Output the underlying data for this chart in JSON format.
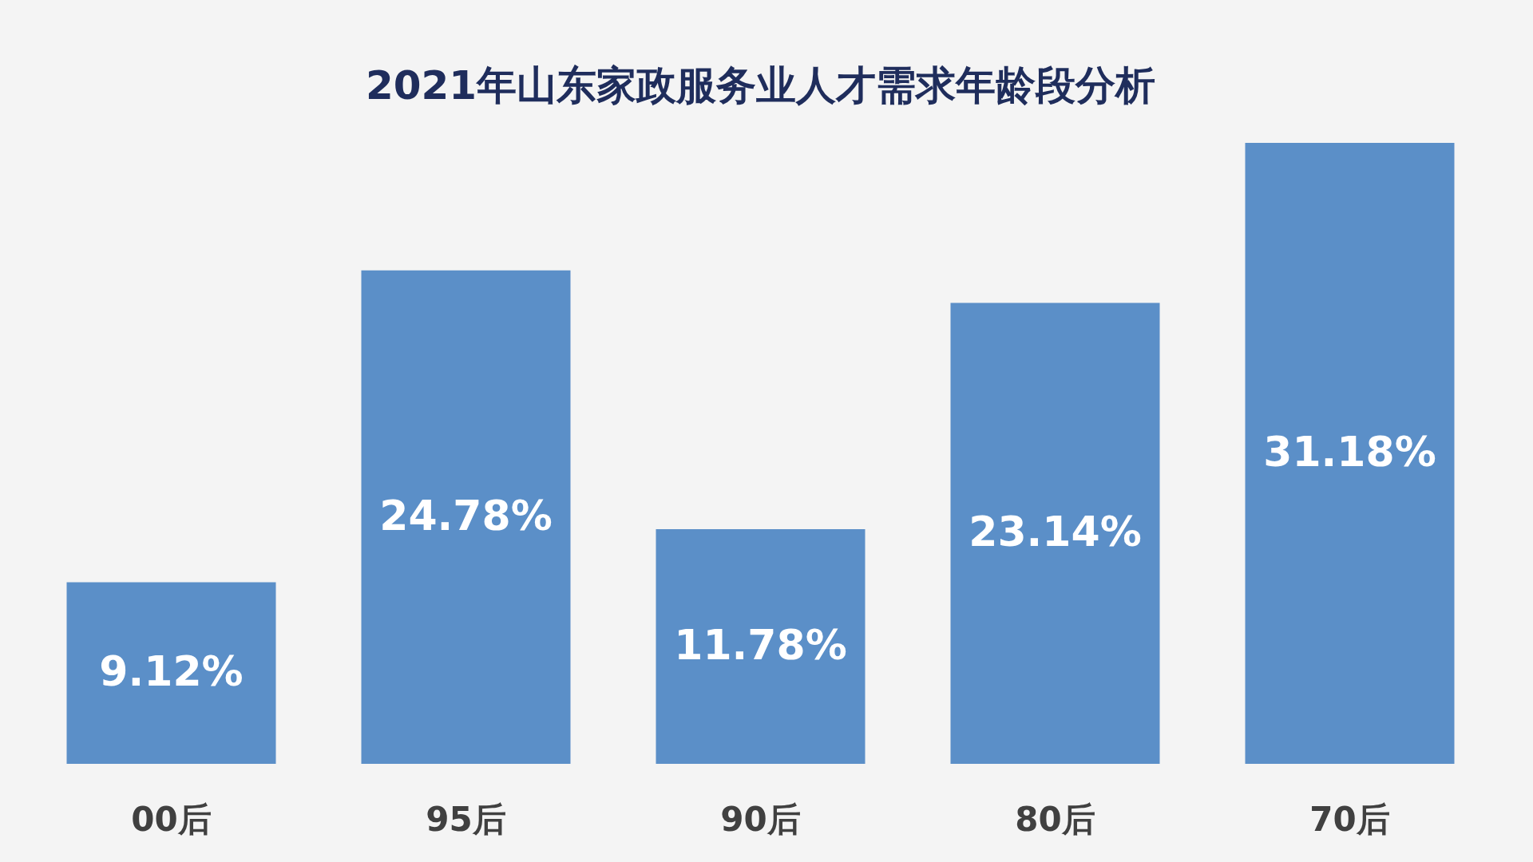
{
  "chart_data": {
    "type": "bar",
    "title": "2021年山东家政服务业人才需求年龄段分析",
    "categories": [
      "00后",
      "95后",
      "90后",
      "80后",
      "70后"
    ],
    "values": [
      9.12,
      24.78,
      11.78,
      23.14,
      31.18
    ],
    "value_labels": [
      "9.12%",
      "24.78%",
      "11.78%",
      "23.14%",
      "31.18%"
    ],
    "color": "#5b8fc8",
    "grid": false
  }
}
